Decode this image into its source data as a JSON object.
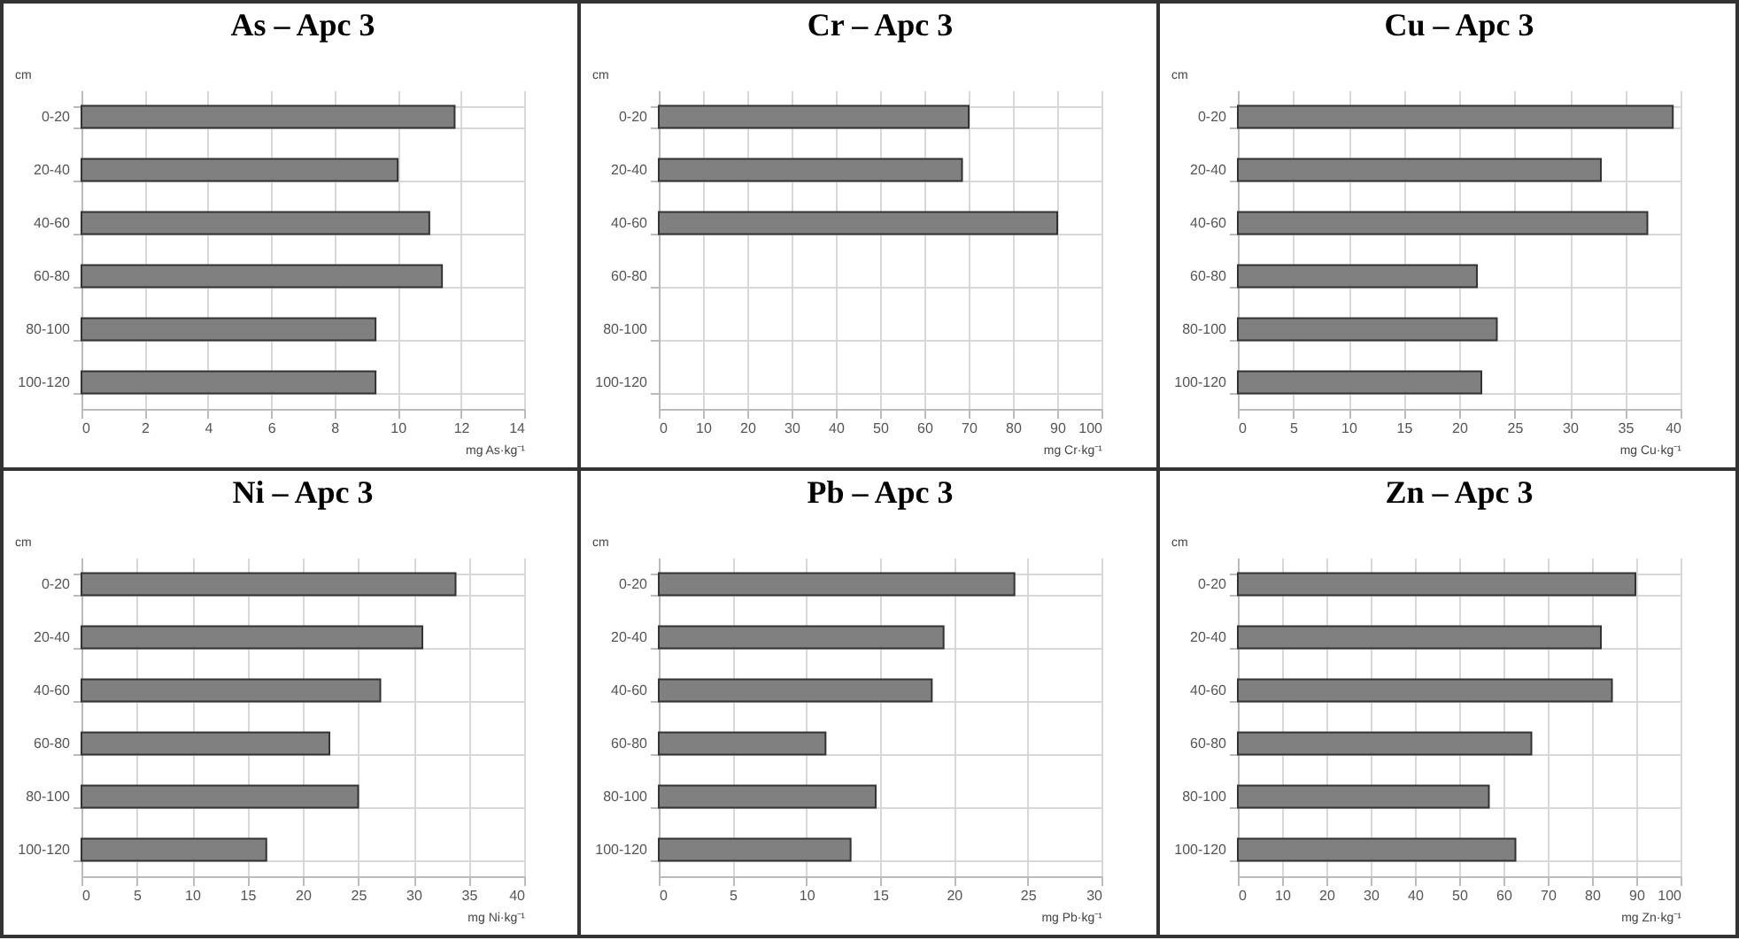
{
  "chart_data": [
    {
      "type": "bar",
      "orientation": "horizontal",
      "title": "As – Apc 3",
      "ylabel": "cm",
      "xlabel": "mg As·kg⁻¹",
      "categories": [
        "0-20",
        "20-40",
        "40-60",
        "60-80",
        "80-100",
        "100-120"
      ],
      "values": [
        11.8,
        10.0,
        11.0,
        11.4,
        9.3,
        9.3
      ],
      "color": "#808080",
      "xlim": [
        0,
        14
      ],
      "xticks": [
        0,
        2,
        4,
        6,
        8,
        10,
        12,
        14
      ],
      "grid": true
    },
    {
      "type": "bar",
      "orientation": "horizontal",
      "title": "Cr – Apc 3",
      "ylabel": "cm",
      "xlabel": "mg Cr·kg⁻¹",
      "categories": [
        "0-20",
        "20-40",
        "40-60",
        "60-80",
        "80-100",
        "100-120"
      ],
      "values": [
        70,
        68.5,
        90,
        null,
        null,
        null
      ],
      "color": "#808080",
      "xlim": [
        0,
        100
      ],
      "xticks": [
        0,
        10,
        20,
        30,
        40,
        50,
        60,
        70,
        80,
        90,
        100
      ],
      "grid": true
    },
    {
      "type": "bar",
      "orientation": "horizontal",
      "title": "Cu – Apc 3",
      "ylabel": "cm",
      "xlabel": "mg Cu·kg⁻¹",
      "categories": [
        "0-20",
        "20-40",
        "40-60",
        "60-80",
        "80-100",
        "100-120"
      ],
      "values": [
        39.3,
        32.8,
        37.0,
        21.6,
        23.4,
        22.0
      ],
      "color": "#808080",
      "xlim": [
        0,
        40
      ],
      "xticks": [
        0,
        5,
        10,
        15,
        20,
        25,
        30,
        35,
        40
      ],
      "grid": true
    },
    {
      "type": "bar",
      "orientation": "horizontal",
      "title": "Ni – Apc 3",
      "ylabel": "cm",
      "xlabel": "mg Ni·kg⁻¹",
      "categories": [
        "0-20",
        "20-40",
        "40-60",
        "60-80",
        "80-100",
        "100-120"
      ],
      "values": [
        33.8,
        30.8,
        27.0,
        22.4,
        25.0,
        16.7
      ],
      "color": "#808080",
      "xlim": [
        0,
        40
      ],
      "xticks": [
        0,
        5,
        10,
        15,
        20,
        25,
        30,
        35,
        40
      ],
      "grid": true
    },
    {
      "type": "bar",
      "orientation": "horizontal",
      "title": "Pb – Apc 3",
      "ylabel": "cm",
      "xlabel": "mg Pb·kg⁻¹",
      "categories": [
        "0-20",
        "20-40",
        "40-60",
        "60-80",
        "80-100",
        "100-120"
      ],
      "values": [
        24.1,
        19.3,
        18.5,
        11.3,
        14.7,
        13.0
      ],
      "color": "#808080",
      "xlim": [
        0,
        30
      ],
      "xticks": [
        0,
        5,
        10,
        15,
        20,
        25,
        30
      ],
      "grid": true
    },
    {
      "type": "bar",
      "orientation": "horizontal",
      "title": "Zn – Apc 3",
      "ylabel": "cm",
      "xlabel": "mg Zn·kg⁻¹",
      "categories": [
        "0-20",
        "20-40",
        "40-60",
        "60-80",
        "80-100",
        "100-120"
      ],
      "values": [
        89.8,
        82.0,
        84.5,
        66.3,
        56.7,
        62.7
      ],
      "color": "#808080",
      "xlim": [
        0,
        100
      ],
      "xticks": [
        0,
        10,
        20,
        30,
        40,
        50,
        60,
        70,
        80,
        90,
        100
      ],
      "grid": true
    }
  ]
}
